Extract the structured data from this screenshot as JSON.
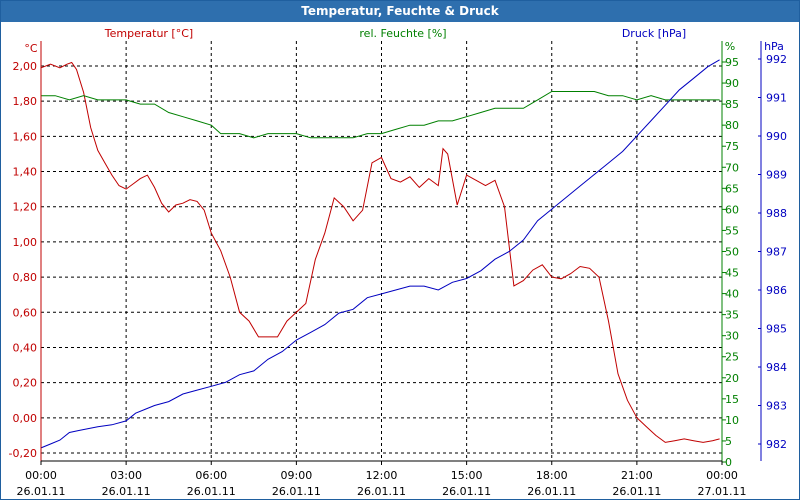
{
  "window": {
    "title": "Temperatur, Feuchte & Druck"
  },
  "colors": {
    "temperature": "#c00000",
    "humidity": "#008000",
    "pressure": "#0000c0",
    "text": "#000000",
    "grid": "#000000"
  },
  "chart_data": {
    "type": "line",
    "title": "Temperatur, Feuchte & Druck",
    "grid": true,
    "x_axis": {
      "range": [
        "26.01.11 00:00",
        "27.01.11 00:00"
      ],
      "ticks": [
        {
          "time": "00:00",
          "date": "26.01.11"
        },
        {
          "time": "03:00",
          "date": "26.01.11"
        },
        {
          "time": "06:00",
          "date": "26.01.11"
        },
        {
          "time": "09:00",
          "date": "26.01.11"
        },
        {
          "time": "12:00",
          "date": "26.01.11"
        },
        {
          "time": "15:00",
          "date": "26.01.11"
        },
        {
          "time": "18:00",
          "date": "26.01.11"
        },
        {
          "time": "21:00",
          "date": "26.01.11"
        },
        {
          "time": "00:00",
          "date": "27.01.11"
        }
      ]
    },
    "y_axes": [
      {
        "id": "temperature",
        "unit": "°C",
        "side": "left",
        "range": [
          -0.2,
          2.0
        ],
        "ticks": [
          "2,00",
          "1,80",
          "1,60",
          "1,40",
          "1,20",
          "1,00",
          "0,80",
          "0,60",
          "0,40",
          "0,20",
          "0,00",
          "-0,20"
        ]
      },
      {
        "id": "humidity",
        "unit": "%",
        "side": "right",
        "range": [
          0,
          95
        ],
        "ticks": [
          "95",
          "90",
          "85",
          "80",
          "75",
          "70",
          "65",
          "60",
          "55",
          "50",
          "45",
          "40",
          "35",
          "30",
          "25",
          "20",
          "15",
          "10",
          "5",
          "0"
        ]
      },
      {
        "id": "pressure",
        "unit": "hPa",
        "side": "right",
        "range": [
          981.7,
          992
        ],
        "ticks": [
          "992",
          "991",
          "990",
          "989",
          "988",
          "987",
          "986",
          "985",
          "984",
          "983",
          "982"
        ]
      }
    ],
    "series": [
      {
        "name": "Temperatur [°C]",
        "axis": "temperature",
        "x": [
          "00:00",
          "00:20",
          "00:40",
          "00:55",
          "01:05",
          "01:15",
          "01:30",
          "01:45",
          "02:00",
          "02:15",
          "02:30",
          "02:45",
          "03:00",
          "03:15",
          "03:30",
          "03:45",
          "04:00",
          "04:15",
          "04:30",
          "04:45",
          "05:00",
          "05:15",
          "05:30",
          "05:45",
          "06:00",
          "06:20",
          "06:40",
          "07:00",
          "07:20",
          "07:40",
          "08:00",
          "08:20",
          "08:40",
          "09:00",
          "09:20",
          "09:40",
          "10:00",
          "10:20",
          "10:40",
          "11:00",
          "11:20",
          "11:40",
          "12:00",
          "12:20",
          "12:40",
          "13:00",
          "13:20",
          "13:40",
          "14:00",
          "14:10",
          "14:20",
          "14:40",
          "15:00",
          "15:20",
          "15:40",
          "16:00",
          "16:20",
          "16:40",
          "17:00",
          "17:20",
          "17:40",
          "18:00",
          "18:20",
          "18:40",
          "19:00",
          "19:20",
          "19:40",
          "20:00",
          "20:20",
          "20:40",
          "21:00",
          "21:20",
          "21:40",
          "22:00",
          "22:20",
          "22:40",
          "23:00",
          "23:20",
          "23:40",
          "23:55"
        ],
        "values": [
          1.99,
          2.01,
          1.99,
          2.01,
          2.02,
          1.98,
          1.85,
          1.65,
          1.52,
          1.45,
          1.38,
          1.32,
          1.3,
          1.33,
          1.36,
          1.38,
          1.31,
          1.22,
          1.17,
          1.21,
          1.22,
          1.24,
          1.23,
          1.18,
          1.05,
          0.95,
          0.8,
          0.6,
          0.55,
          0.46,
          0.46,
          0.46,
          0.55,
          0.6,
          0.65,
          0.9,
          1.05,
          1.25,
          1.2,
          1.12,
          1.18,
          1.45,
          1.48,
          1.36,
          1.34,
          1.37,
          1.31,
          1.36,
          1.32,
          1.53,
          1.5,
          1.21,
          1.38,
          1.35,
          1.32,
          1.35,
          1.2,
          0.75,
          0.78,
          0.84,
          0.87,
          0.8,
          0.79,
          0.82,
          0.86,
          0.85,
          0.8,
          0.55,
          0.25,
          0.1,
          0.0,
          -0.05,
          -0.1,
          -0.14,
          -0.13,
          -0.12,
          -0.13,
          -0.14,
          -0.13,
          -0.12
        ]
      },
      {
        "name": "rel. Feuchte [%]",
        "axis": "humidity",
        "x": [
          "00:00",
          "00:30",
          "01:00",
          "01:30",
          "02:00",
          "02:30",
          "03:00",
          "03:30",
          "04:00",
          "04:30",
          "05:00",
          "05:30",
          "06:00",
          "06:20",
          "06:40",
          "07:00",
          "07:30",
          "08:00",
          "08:30",
          "09:00",
          "09:30",
          "10:00",
          "10:30",
          "11:00",
          "11:30",
          "12:00",
          "12:30",
          "13:00",
          "13:30",
          "14:00",
          "14:30",
          "15:00",
          "15:30",
          "16:00",
          "16:30",
          "17:00",
          "17:30",
          "18:00",
          "18:30",
          "19:00",
          "19:30",
          "20:00",
          "20:30",
          "21:00",
          "21:30",
          "22:00",
          "22:30",
          "23:00",
          "23:30",
          "23:55"
        ],
        "values": [
          87,
          87,
          86,
          87,
          86,
          86,
          86,
          85,
          85,
          83,
          82,
          81,
          80,
          78,
          78,
          78,
          77,
          78,
          78,
          78,
          77,
          77,
          77,
          77,
          78,
          78,
          79,
          80,
          80,
          81,
          81,
          82,
          83,
          84,
          84,
          84,
          86,
          88,
          88,
          88,
          88,
          87,
          87,
          86,
          87,
          86,
          86,
          86,
          86,
          86
        ]
      },
      {
        "name": "Druck [hPa]",
        "axis": "pressure",
        "x": [
          "00:00",
          "00:20",
          "00:40",
          "01:00",
          "01:20",
          "01:40",
          "02:00",
          "02:30",
          "03:00",
          "03:20",
          "03:40",
          "04:00",
          "04:30",
          "05:00",
          "05:30",
          "06:00",
          "06:30",
          "07:00",
          "07:30",
          "08:00",
          "08:30",
          "09:00",
          "09:30",
          "10:00",
          "10:30",
          "11:00",
          "11:30",
          "12:00",
          "12:30",
          "13:00",
          "13:30",
          "14:00",
          "14:30",
          "15:00",
          "15:30",
          "16:00",
          "16:30",
          "17:00",
          "17:30",
          "18:00",
          "18:30",
          "19:00",
          "19:30",
          "20:00",
          "20:30",
          "21:00",
          "21:30",
          "22:00",
          "22:30",
          "23:00",
          "23:30",
          "23:55"
        ],
        "values": [
          981.9,
          982.0,
          982.1,
          982.3,
          982.35,
          982.4,
          982.45,
          982.5,
          982.6,
          982.8,
          982.9,
          983.0,
          983.1,
          983.3,
          983.4,
          983.5,
          983.6,
          983.8,
          983.9,
          984.2,
          984.4,
          984.7,
          984.9,
          985.1,
          985.4,
          985.5,
          985.8,
          985.9,
          986.0,
          986.1,
          986.1,
          986.0,
          986.2,
          986.3,
          986.5,
          986.8,
          987.0,
          987.3,
          987.8,
          988.1,
          988.4,
          988.7,
          989.0,
          989.3,
          989.6,
          990.0,
          990.4,
          990.8,
          991.2,
          991.5,
          991.8,
          991.98
        ]
      }
    ]
  }
}
